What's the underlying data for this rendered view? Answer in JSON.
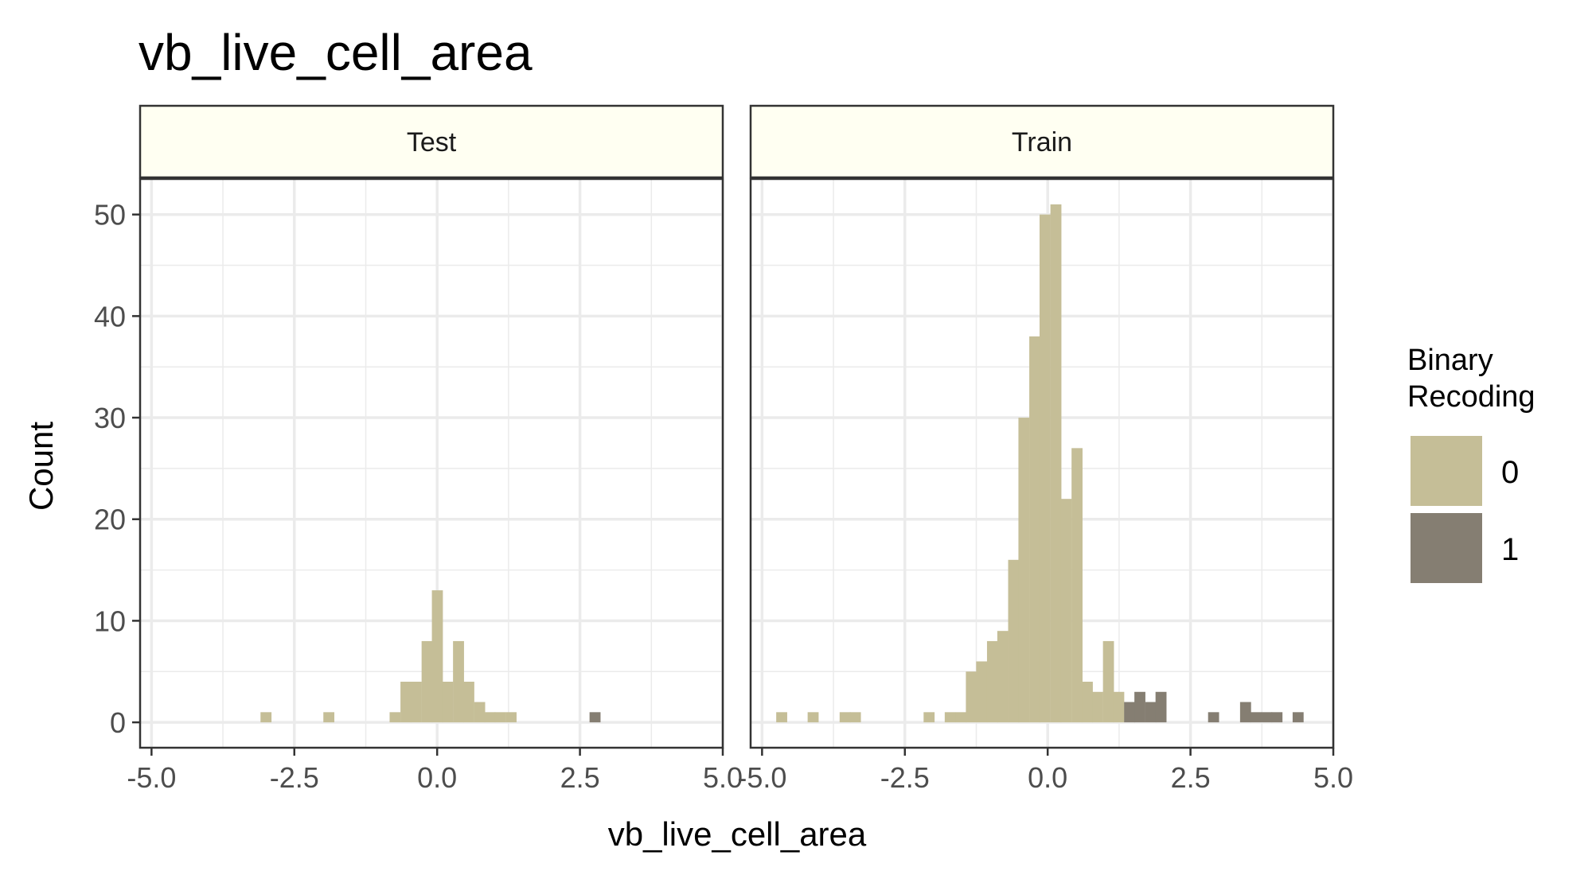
{
  "chart_data": {
    "type": "bar",
    "subtype": "faceted stacked histogram",
    "title": "vb_live_cell_area",
    "xlabel": "vb_live_cell_area",
    "ylabel": "Count",
    "xlim": [
      -5.2,
      5.0
    ],
    "ylim": [
      -2.5,
      53.5
    ],
    "x_ticks": [
      "-5.0",
      "-2.5",
      "0.0",
      "2.5",
      "5.0"
    ],
    "x_tick_values": [
      -5.0,
      -2.5,
      0.0,
      2.5,
      5.0
    ],
    "y_ticks": [
      "0",
      "10",
      "20",
      "30",
      "40",
      "50"
    ],
    "y_tick_values": [
      0,
      10,
      20,
      30,
      40,
      50
    ],
    "bin_width": 0.184,
    "grid": true,
    "legend": {
      "title_lines": [
        "Binary",
        "Recoding"
      ],
      "position": "right",
      "items": [
        {
          "label": "0",
          "color": "#c5be97"
        },
        {
          "label": "1",
          "color": "#857e72"
        }
      ]
    },
    "colors": {
      "strip_fill": "#fffff2",
      "panel_border": "#333333",
      "grid": "#ebebeb"
    },
    "facets": [
      {
        "label": "Test",
        "series": [
          {
            "group": "0",
            "x": [
              -3.0,
              -1.9,
              -0.74,
              -0.55,
              -0.37,
              -0.18,
              0.0,
              0.18,
              0.37,
              0.55,
              0.74,
              0.92,
              1.1,
              1.29
            ],
            "values": [
              1,
              1,
              1,
              4,
              4,
              8,
              13,
              4,
              8,
              4,
              2,
              1,
              1,
              1
            ]
          },
          {
            "group": "1",
            "x": [
              2.76
            ],
            "values": [
              1
            ]
          }
        ]
      },
      {
        "label": "Train",
        "series": [
          {
            "group": "0",
            "x": [
              -4.66,
              -4.11,
              -3.55,
              -3.37,
              -2.08,
              -1.71,
              -1.52,
              -1.34,
              -1.16,
              -0.97,
              -0.79,
              -0.6,
              -0.42,
              -0.23,
              -0.05,
              0.14,
              0.32,
              0.51,
              0.69,
              0.87,
              1.06,
              1.24
            ],
            "values": [
              1,
              1,
              1,
              1,
              1,
              1,
              1,
              5,
              6,
              8,
              9,
              16,
              30,
              38,
              50,
              51,
              22,
              27,
              4,
              3,
              8,
              3
            ]
          },
          {
            "group": "1",
            "x": [
              1.43,
              1.61,
              1.8,
              1.98,
              2.9,
              3.46,
              3.64,
              3.83,
              4.01,
              4.38
            ],
            "values": [
              2,
              3,
              2,
              3,
              1,
              2,
              1,
              1,
              1,
              1
            ]
          }
        ]
      }
    ]
  }
}
